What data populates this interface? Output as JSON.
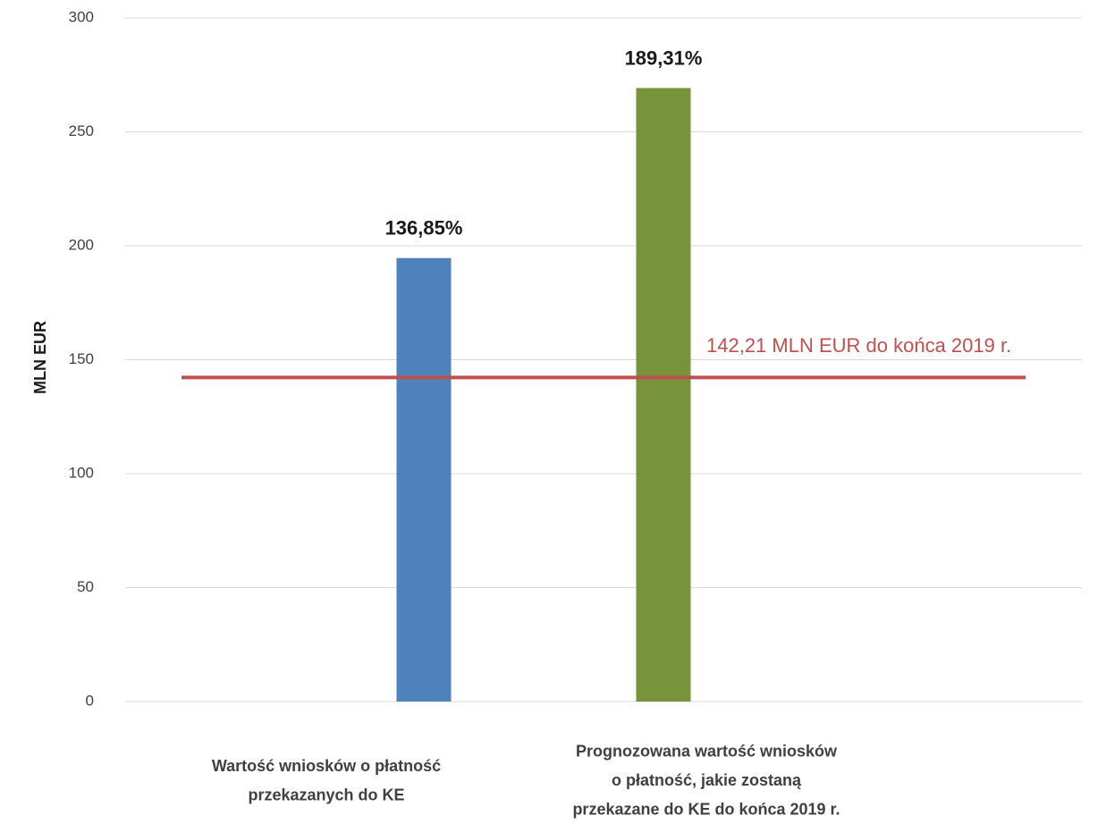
{
  "chart_data": {
    "type": "bar",
    "y_axis_label": "MLN EUR",
    "categories": [
      [
        "Wartość wniosków o płatność",
        "przekazanych do KE"
      ],
      [
        "Prognozowana wartość wniosków",
        "o płatność, jakie zostaną",
        "przekazane do KE do końca 2019 r."
      ]
    ],
    "values": [
      194.61,
      269.22
    ],
    "annotations": [
      "136,85%",
      "189,31%"
    ],
    "colors": [
      "#4f81bd",
      "#77933c"
    ],
    "reference_line": {
      "value": 142.21,
      "label": "142,21 MLN EUR do końca 2019 r.",
      "color": "#c0504d"
    },
    "ylim": [
      0,
      300
    ],
    "yticks": [
      0,
      50,
      100,
      150,
      200,
      250,
      300
    ],
    "grid": true
  }
}
